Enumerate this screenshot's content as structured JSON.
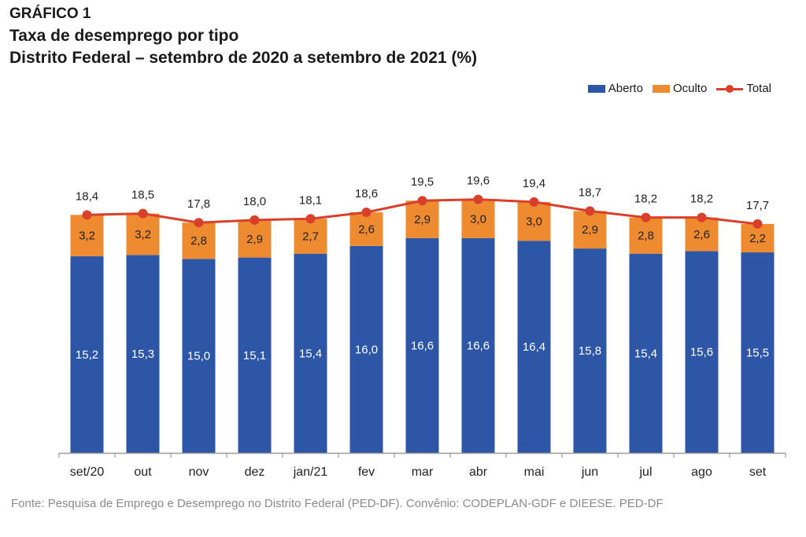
{
  "header": {
    "label": "GRÁFICO 1",
    "title": "Taxa de desemprego por tipo",
    "subtitle": "Distrito Federal – setembro de 2020 a setembro de 2021 (%)"
  },
  "legend": {
    "aberto": "Aberto",
    "oculto": "Oculto",
    "total": "Total"
  },
  "colors": {
    "aberto": "#2e56a6",
    "oculto": "#ee8a2f",
    "total": "#d9402b"
  },
  "chart_data": {
    "type": "bar",
    "stacked": true,
    "title": "Taxa de desemprego por tipo",
    "xlabel": "",
    "ylabel": "",
    "ylim": [
      0,
      25
    ],
    "categories": [
      "set/20",
      "out",
      "nov",
      "dez",
      "jan/21",
      "fev",
      "mar",
      "abr",
      "mai",
      "jun",
      "jul",
      "ago",
      "set"
    ],
    "series": [
      {
        "name": "Aberto",
        "kind": "bar",
        "values": [
          15.2,
          15.3,
          15.0,
          15.1,
          15.4,
          16.0,
          16.6,
          16.6,
          16.4,
          15.8,
          15.4,
          15.6,
          15.5
        ],
        "labels": [
          "15,2",
          "15,3",
          "15,0",
          "15,1",
          "15,4",
          "16,0",
          "16,6",
          "16,6",
          "16,4",
          "15,8",
          "15,4",
          "15,6",
          "15,5"
        ]
      },
      {
        "name": "Oculto",
        "kind": "bar",
        "values": [
          3.2,
          3.2,
          2.8,
          2.9,
          2.7,
          2.6,
          2.9,
          3.0,
          3.0,
          2.9,
          2.8,
          2.6,
          2.2
        ],
        "labels": [
          "3,2",
          "3,2",
          "2,8",
          "2,9",
          "2,7",
          "2,6",
          "2,9",
          "3,0",
          "3,0",
          "2,9",
          "2,8",
          "2,6",
          "2,2"
        ]
      },
      {
        "name": "Total",
        "kind": "line",
        "values": [
          18.4,
          18.5,
          17.8,
          18.0,
          18.1,
          18.6,
          19.5,
          19.6,
          19.4,
          18.7,
          18.2,
          18.2,
          17.7
        ],
        "labels": [
          "18,4",
          "18,5",
          "17,8",
          "18,0",
          "18,1",
          "18,6",
          "19,5",
          "19,6",
          "19,4",
          "18,7",
          "18,2",
          "18,2",
          "17,7"
        ]
      }
    ]
  },
  "source": "Fonte: Pesquisa de Emprego e Desemprego no Distrito Federal (PED-DF). Convênio: CODEPLAN-GDF e DIEESE. PED-DF"
}
